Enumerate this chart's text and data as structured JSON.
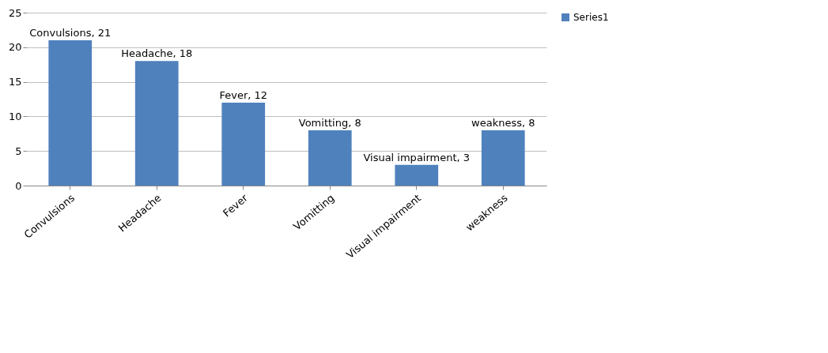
{
  "chart_data": {
    "type": "bar",
    "categories": [
      "Convulsions",
      "Headache",
      "Fever",
      "Vomitting",
      "Visual impairment",
      "weakness"
    ],
    "series": [
      {
        "name": "Series1",
        "color": "#4f81bd",
        "values": [
          21,
          18,
          12,
          8,
          3,
          8
        ],
        "value_labels": [
          "Convulsions, 21",
          "Headache, 18",
          "Fever, 12",
          "Vomitting, 8",
          "Visual impairment, 3",
          "weakness, 8"
        ]
      }
    ],
    "ylim": [
      0,
      25
    ],
    "yticks": [
      0,
      5,
      10,
      15,
      20,
      25
    ],
    "grid": "y",
    "legend": "right"
  }
}
